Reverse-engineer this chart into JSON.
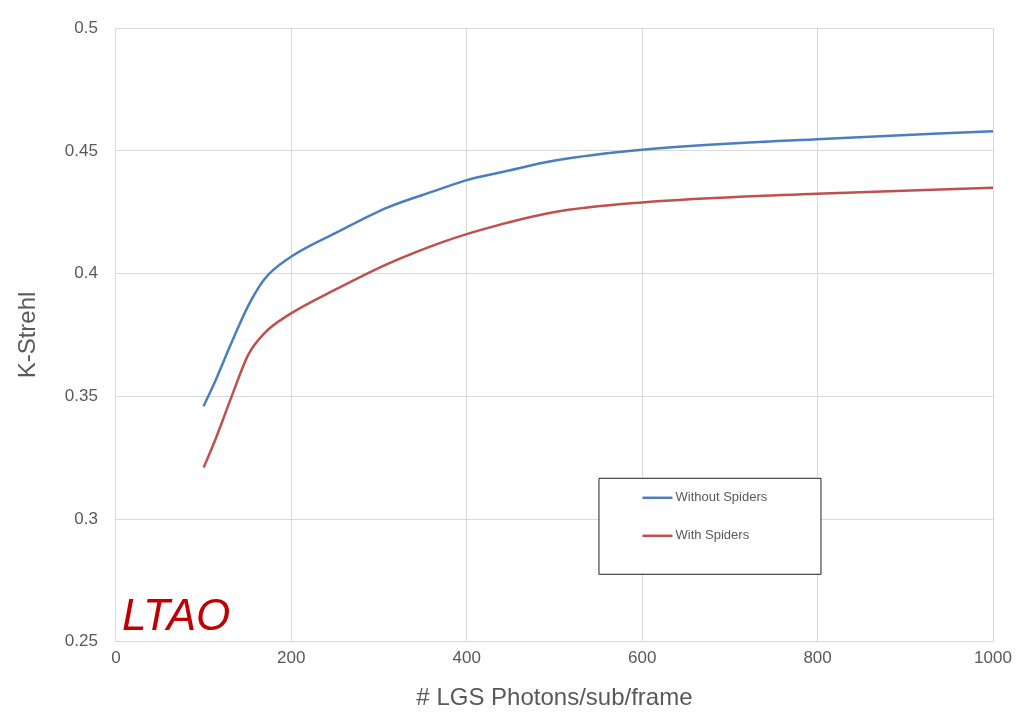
{
  "chart_data": {
    "type": "line",
    "xlabel": "# LGS Photons/sub/frame",
    "ylabel": "K-Strehl",
    "series": [
      {
        "name": "Without Spiders",
        "color": "#4a7ebf",
        "x": [
          100,
          113,
          132,
          151,
          170,
          196,
          253,
          310,
          366,
          399,
          442,
          499,
          600,
          799,
          1000
        ],
        "values": [
          0.346,
          0.356,
          0.372,
          0.387,
          0.398,
          0.406,
          0.417,
          0.427,
          0.434,
          0.438,
          0.4415,
          0.446,
          0.4505,
          0.4548,
          0.458
        ]
      },
      {
        "name": "With Spiders",
        "color": "#c0504d",
        "x": [
          100,
          113,
          132,
          151,
          170,
          196,
          253,
          310,
          366,
          399,
          499,
          600,
          799,
          1000
        ],
        "values": [
          0.321,
          0.332,
          0.35,
          0.367,
          0.376,
          0.383,
          0.394,
          0.404,
          0.412,
          0.416,
          0.425,
          0.429,
          0.4326,
          0.435
        ]
      }
    ],
    "xlim": [
      0,
      1000
    ],
    "xticks": [
      0,
      200,
      400,
      600,
      800,
      1000
    ],
    "ylim": [
      0.25,
      0.5
    ],
    "yticks": [
      0.25,
      0.3,
      0.35,
      0.4,
      0.45,
      0.5
    ],
    "grid": true,
    "legend": "bottom right",
    "marker": "none",
    "line_style": "solid",
    "annotations": [
      "LTAO"
    ]
  }
}
